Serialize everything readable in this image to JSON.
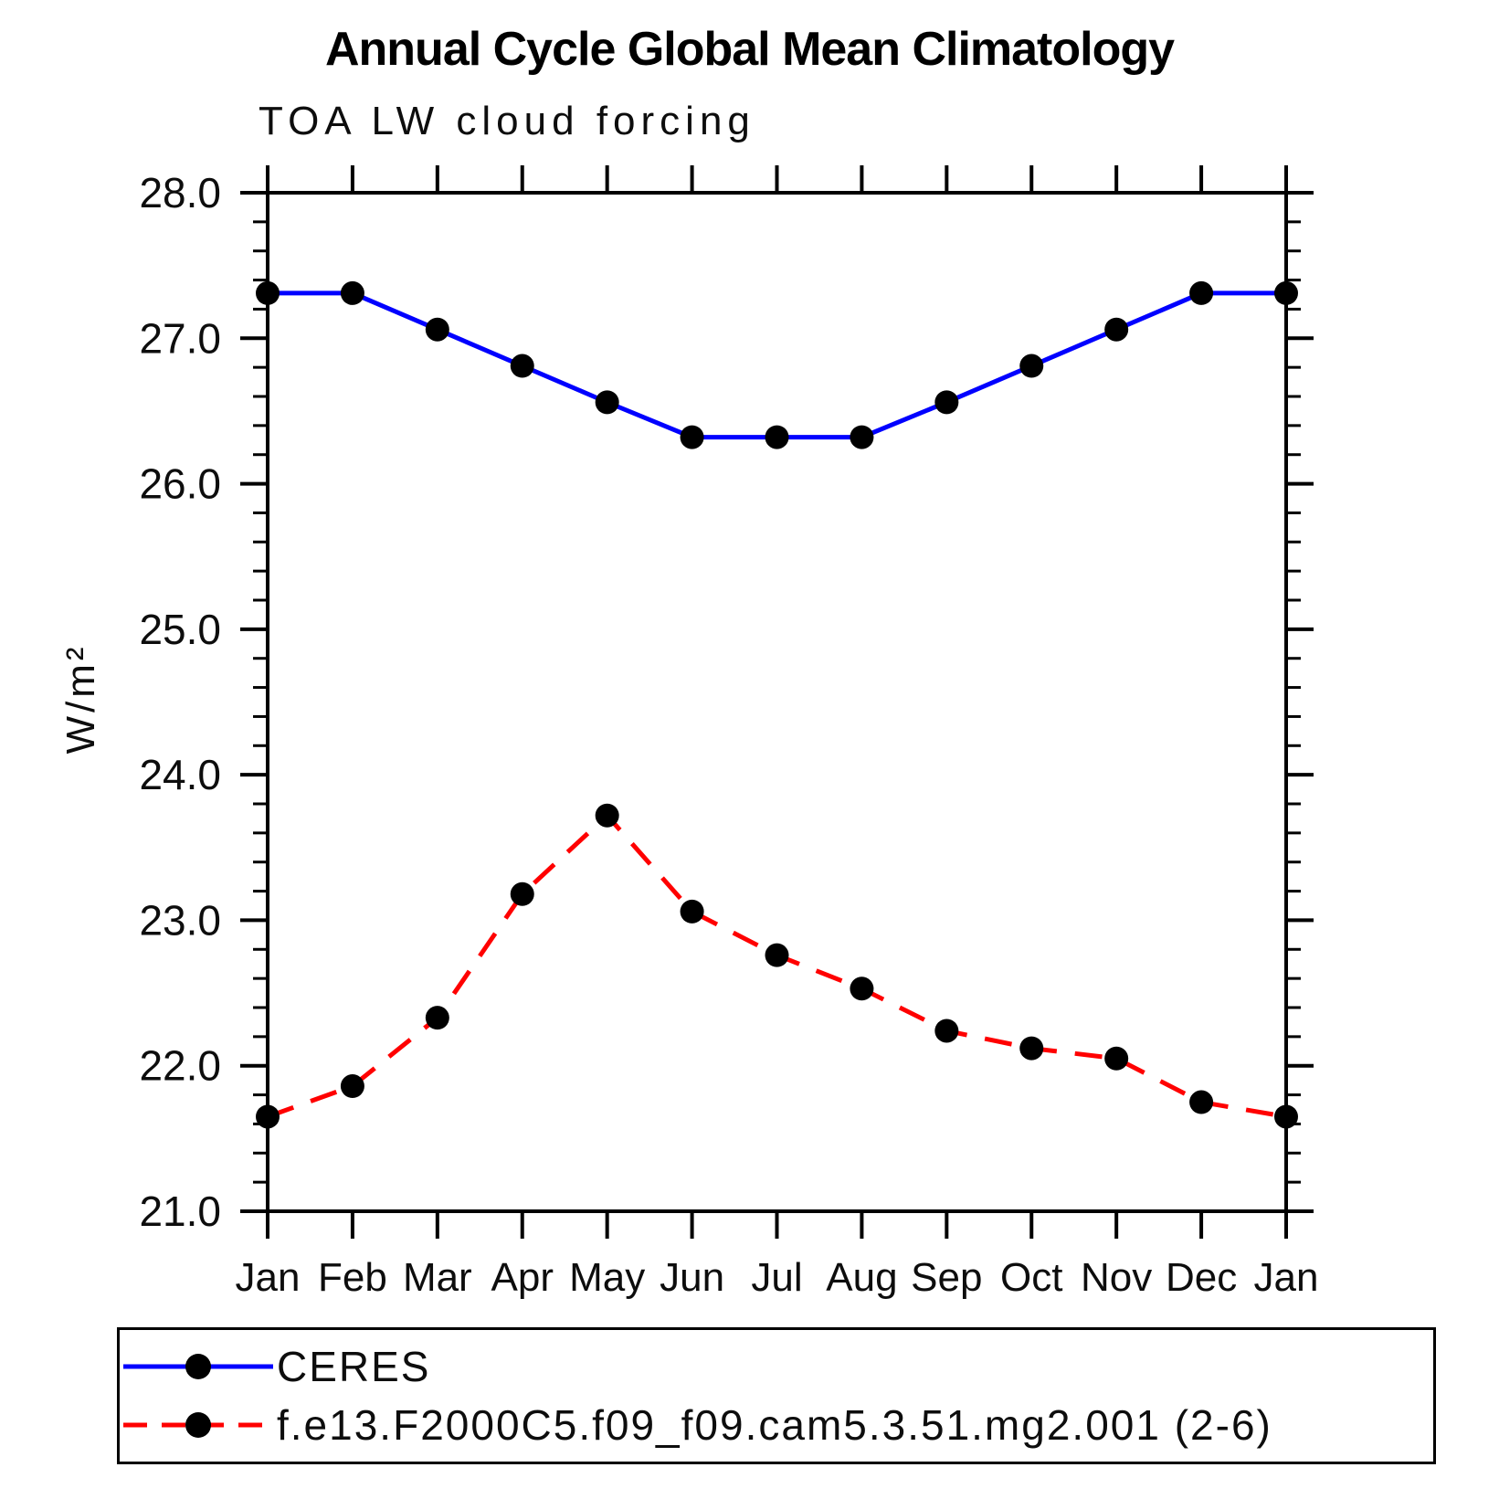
{
  "chart_data": {
    "type": "line",
    "title": "Annual Cycle Global Mean Climatology",
    "subtitle": "TOA LW cloud forcing",
    "ylabel": "W/m²",
    "xlabel": "",
    "categories": [
      "Jan",
      "Feb",
      "Mar",
      "Apr",
      "May",
      "Jun",
      "Jul",
      "Aug",
      "Sep",
      "Oct",
      "Nov",
      "Dec",
      "Jan"
    ],
    "ylim": [
      21.0,
      28.0
    ],
    "ytick_major_step": 1.0,
    "ytick_minor_step": 0.2,
    "ytick_labels": [
      "28.0",
      "27.0",
      "26.0",
      "25.0",
      "24.0",
      "23.0",
      "22.0",
      "21.0"
    ],
    "grid": false,
    "legend_position": "bottom-box",
    "series": [
      {
        "name": "CERES",
        "line_color": "#0000ff",
        "line_style": "solid",
        "marker_color": "#000000",
        "values": [
          27.31,
          27.31,
          27.06,
          26.81,
          26.56,
          26.32,
          26.32,
          26.32,
          26.56,
          26.81,
          27.06,
          27.31,
          27.31
        ]
      },
      {
        "name": "f.e13.F2000C5.f09_f09.cam5.3.51.mg2.001 (2-6)",
        "line_color": "#ff0000",
        "line_style": "dashed",
        "marker_color": "#000000",
        "values": [
          21.65,
          21.86,
          22.33,
          23.18,
          23.72,
          23.06,
          22.76,
          22.53,
          22.24,
          22.12,
          22.05,
          21.75,
          21.65
        ]
      }
    ]
  }
}
